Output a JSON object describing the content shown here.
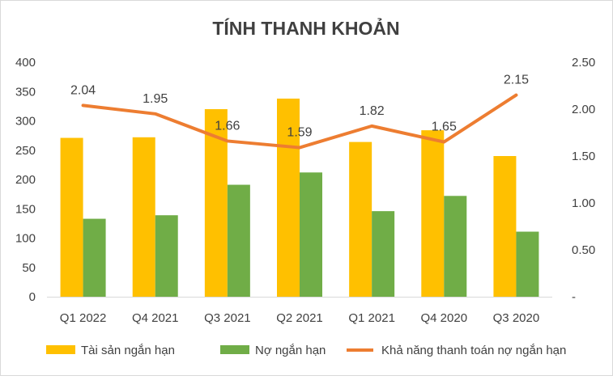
{
  "chart_data": {
    "type": "bar",
    "title": "TÍNH THANH KHOẢN",
    "categories": [
      "Q1 2022",
      "Q4 2021",
      "Q3 2021",
      "Q2 2021",
      "Q1 2021",
      "Q4 2020",
      "Q3 2020"
    ],
    "series": [
      {
        "name": "Tài sản ngắn hạn",
        "type": "bar",
        "axis": "left",
        "color": "#FFC000",
        "values": [
          271,
          272,
          320,
          338,
          264,
          284,
          240
        ]
      },
      {
        "name": "Nợ ngắn hạn",
        "type": "bar",
        "axis": "left",
        "color": "#70AD47",
        "values": [
          133,
          139,
          191,
          212,
          146,
          172,
          111
        ]
      },
      {
        "name": "Khả năng thanh toán nợ ngắn hạn",
        "type": "line",
        "axis": "right",
        "color": "#ED7D31",
        "values": [
          2.04,
          1.95,
          1.66,
          1.59,
          1.82,
          1.65,
          2.15
        ],
        "data_labels": [
          "2.04",
          "1.95",
          "1.66",
          "1.59",
          "1.82",
          "1.65",
          "2.15"
        ]
      }
    ],
    "left_axis": {
      "min": 0,
      "max": 400,
      "ticks": [
        "0",
        "50",
        "100",
        "150",
        "200",
        "250",
        "300",
        "350",
        "400"
      ]
    },
    "right_axis": {
      "min": 0,
      "max": 2.5,
      "ticks": [
        "-",
        "0.50",
        "1.00",
        "1.50",
        "2.00",
        "2.50"
      ]
    },
    "legend_position": "bottom",
    "grid": false
  }
}
